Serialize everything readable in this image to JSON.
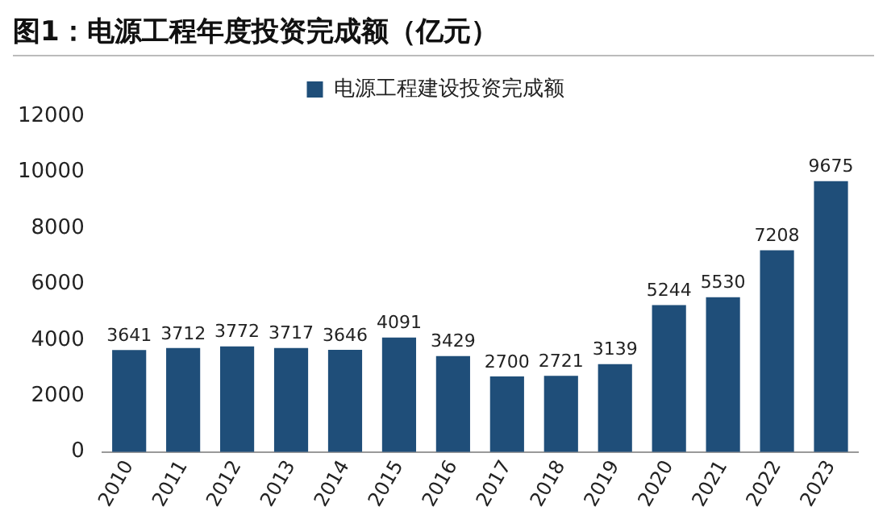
{
  "chart_data": {
    "type": "bar",
    "title": "图1：电源工程年度投资完成额（亿元）",
    "categories": [
      "2010",
      "2011",
      "2012",
      "2013",
      "2014",
      "2015",
      "2016",
      "2017",
      "2018",
      "2019",
      "2020",
      "2021",
      "2022",
      "2023"
    ],
    "series": [
      {
        "name": "电源工程建设投资完成额",
        "color": "#1f4e79",
        "values": [
          3641,
          3712,
          3772,
          3717,
          3646,
          4091,
          3429,
          2700,
          2721,
          3139,
          5244,
          5530,
          7208,
          9675
        ]
      }
    ],
    "ylim": [
      0,
      12000
    ],
    "yticks": [
      0,
      2000,
      4000,
      6000,
      8000,
      10000,
      12000
    ],
    "grid": false,
    "legend": "top",
    "data_labels": true
  }
}
